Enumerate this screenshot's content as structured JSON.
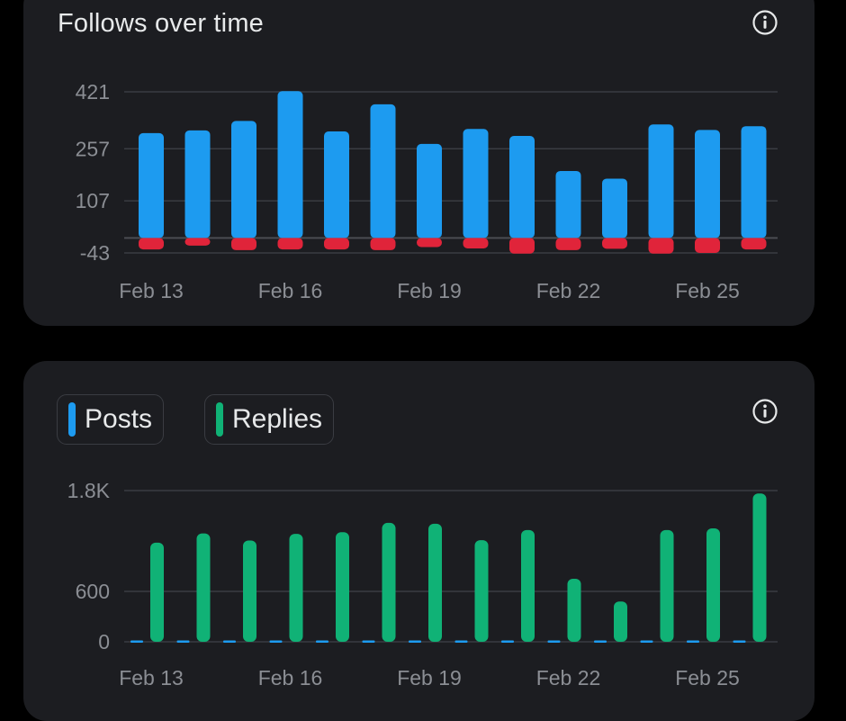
{
  "colors": {
    "background": "#000000",
    "card": "#1c1d21",
    "gridline": "#3a3c42",
    "follows": "#1d9bf0",
    "unfollows": "#e0243a",
    "posts": "#1d9bf0",
    "replies": "#10b276",
    "tick_text": "#8b8e94",
    "title_text": "#e7e9ea"
  },
  "follows_card": {
    "title": "Follows over time",
    "info_icon": "info-icon"
  },
  "activity_card": {
    "info_icon": "info-icon",
    "legend": [
      {
        "label": "Posts",
        "color": "#1d9bf0"
      },
      {
        "label": "Replies",
        "color": "#10b276"
      }
    ]
  },
  "chart_data": [
    {
      "type": "bar",
      "title": "Follows over time",
      "categories": [
        "Feb 13",
        "Feb 14",
        "Feb 15",
        "Feb 16",
        "Feb 17",
        "Feb 18",
        "Feb 19",
        "Feb 20",
        "Feb 21",
        "Feb 22",
        "Feb 23",
        "Feb 24",
        "Feb 25",
        "Feb 26"
      ],
      "x_tick_labels": [
        "Feb 13",
        "Feb 16",
        "Feb 19",
        "Feb 22",
        "Feb 25"
      ],
      "y_tick_labels": [
        "421",
        "257",
        "107",
        "-43"
      ],
      "y_ticks": [
        421,
        257,
        107,
        -43
      ],
      "ylim": [
        -43,
        421
      ],
      "grid": true,
      "series": [
        {
          "values": [
            302,
            310,
            337,
            423,
            307,
            385,
            271,
            314,
            294,
            193,
            171,
            327,
            311,
            322
          ]
        },
        {
          "values": [
            -33,
            -22,
            -35,
            -33,
            -33,
            -35,
            -26,
            -30,
            -45,
            -35,
            -31,
            -45,
            -43,
            -33
          ]
        }
      ]
    },
    {
      "type": "bar",
      "categories": [
        "Feb 13",
        "Feb 14",
        "Feb 15",
        "Feb 16",
        "Feb 17",
        "Feb 18",
        "Feb 19",
        "Feb 20",
        "Feb 21",
        "Feb 22",
        "Feb 23",
        "Feb 24",
        "Feb 25",
        "Feb 26"
      ],
      "x_tick_labels": [
        "Feb 13",
        "Feb 16",
        "Feb 19",
        "Feb 22",
        "Feb 25"
      ],
      "y_tick_labels": [
        "1.8K",
        "600",
        "0"
      ],
      "y_ticks": [
        1800,
        600,
        0
      ],
      "ylim": [
        0,
        1800
      ],
      "grid": true,
      "legend": "top-left",
      "series": [
        {
          "name": "Posts",
          "values": [
            0,
            0,
            0,
            0,
            0,
            0,
            0,
            0,
            0,
            0,
            0,
            0,
            0,
            0
          ]
        },
        {
          "name": "Replies",
          "values": [
            1180,
            1290,
            1205,
            1285,
            1305,
            1415,
            1405,
            1210,
            1330,
            750,
            480,
            1330,
            1350,
            1765
          ]
        }
      ]
    }
  ]
}
